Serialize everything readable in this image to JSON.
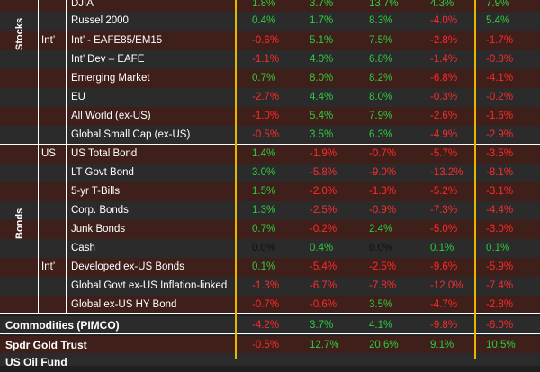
{
  "colors": {
    "positive": "#2ecc40",
    "negative": "#ff2a2a",
    "gold_rule": "#e7b400",
    "stripe_red": "#3f1f1a",
    "stripe_dark": "#2b2b2b"
  },
  "sections": {
    "stocks": "Stocks",
    "bonds": "Bonds"
  },
  "rows": [
    {
      "group": "",
      "name": "DJIA",
      "values": [
        "1.8%",
        "3.7%",
        "13.7%",
        "4.3%",
        "7.9%"
      ],
      "signs": [
        "pos",
        "pos",
        "pos",
        "pos",
        "pos"
      ],
      "stripe": "red"
    },
    {
      "group": "",
      "name": "Russel 2000",
      "values": [
        "0.4%",
        "1.7%",
        "8.3%",
        "-4.0%",
        "5.4%"
      ],
      "signs": [
        "pos",
        "pos",
        "pos",
        "neg",
        "pos"
      ],
      "stripe": "dark"
    },
    {
      "group": "Int’",
      "name": "Int’ - EAFE85/EM15",
      "values": [
        "-0.6%",
        "5.1%",
        "7.5%",
        "-2.8%",
        "-1.7%"
      ],
      "signs": [
        "neg",
        "pos",
        "pos",
        "neg",
        "neg"
      ],
      "stripe": "red"
    },
    {
      "group": "",
      "name": "Int’ Dev – EAFE",
      "values": [
        "-1.1%",
        "4.0%",
        "6.8%",
        "-1.4%",
        "-0.8%"
      ],
      "signs": [
        "neg",
        "pos",
        "pos",
        "neg",
        "neg"
      ],
      "stripe": "dark"
    },
    {
      "group": "",
      "name": "Emerging Market",
      "values": [
        "0.7%",
        "8.0%",
        "8.2%",
        "-6.8%",
        "-4.1%"
      ],
      "signs": [
        "pos",
        "pos",
        "pos",
        "neg",
        "neg"
      ],
      "stripe": "red"
    },
    {
      "group": "",
      "name": "EU",
      "values": [
        "-2.7%",
        "4.4%",
        "8.0%",
        "-0.3%",
        "-0.2%"
      ],
      "signs": [
        "neg",
        "pos",
        "pos",
        "neg",
        "neg"
      ],
      "stripe": "dark"
    },
    {
      "group": "",
      "name": "All World (ex-US)",
      "values": [
        "-1.0%",
        "5.4%",
        "7.9%",
        "-2.6%",
        "-1.6%"
      ],
      "signs": [
        "neg",
        "pos",
        "pos",
        "neg",
        "neg"
      ],
      "stripe": "red"
    },
    {
      "group": "",
      "name": "Global Small Cap (ex-US)",
      "values": [
        "-0.5%",
        "3.5%",
        "6.3%",
        "-4.9%",
        "-2.9%"
      ],
      "signs": [
        "neg",
        "pos",
        "pos",
        "neg",
        "neg"
      ],
      "stripe": "dark"
    },
    {
      "group": "US",
      "name": "US Total Bond",
      "values": [
        "1.4%",
        "-1.9%",
        "-0.7%",
        "-5.7%",
        "-3.5%"
      ],
      "signs": [
        "pos",
        "neg",
        "neg",
        "neg",
        "neg"
      ],
      "stripe": "red"
    },
    {
      "group": "",
      "name": "LT Govt Bond",
      "values": [
        "3.0%",
        "-5.8%",
        "-9.0%",
        "-13.2%",
        "-8.1%"
      ],
      "signs": [
        "pos",
        "neg",
        "neg",
        "neg",
        "neg"
      ],
      "stripe": "dark"
    },
    {
      "group": "",
      "name": "5-yr T-Bills",
      "values": [
        "1.5%",
        "-2.0%",
        "-1.3%",
        "-5.2%",
        "-3.1%"
      ],
      "signs": [
        "pos",
        "neg",
        "neg",
        "neg",
        "neg"
      ],
      "stripe": "red"
    },
    {
      "group": "",
      "name": "Corp. Bonds",
      "values": [
        "1.3%",
        "-2.5%",
        "-0.9%",
        "-7.3%",
        "-4.4%"
      ],
      "signs": [
        "pos",
        "neg",
        "neg",
        "neg",
        "neg"
      ],
      "stripe": "dark"
    },
    {
      "group": "",
      "name": "Junk Bonds",
      "values": [
        "0.7%",
        "-0.2%",
        "2.4%",
        "-5.0%",
        "-3.0%"
      ],
      "signs": [
        "pos",
        "neg",
        "pos",
        "neg",
        "neg"
      ],
      "stripe": "red"
    },
    {
      "group": "",
      "name": "Cash",
      "values": [
        "0.0%",
        "0.4%",
        "0.0%",
        "0.1%",
        "0.1%"
      ],
      "signs": [
        "zero",
        "pos",
        "zero",
        "pos",
        "pos"
      ],
      "stripe": "dark"
    },
    {
      "group": "Int’",
      "name": "Developed ex-US Bonds",
      "values": [
        "0.1%",
        "-5.4%",
        "-2.5%",
        "-9.6%",
        "-5.9%"
      ],
      "signs": [
        "pos",
        "neg",
        "neg",
        "neg",
        "neg"
      ],
      "stripe": "red"
    },
    {
      "group": "",
      "name": "Global Govt ex-US Inflation-linked",
      "values": [
        "-1.3%",
        "-6.7%",
        "-7.8%",
        "-12.0%",
        "-7.4%"
      ],
      "signs": [
        "neg",
        "neg",
        "neg",
        "neg",
        "neg"
      ],
      "stripe": "dark"
    },
    {
      "group": "",
      "name": "Global ex-US HY Bond",
      "values": [
        "-0.7%",
        "-0.6%",
        "3.5%",
        "-4.7%",
        "-2.8%"
      ],
      "signs": [
        "neg",
        "neg",
        "pos",
        "neg",
        "neg"
      ],
      "stripe": "red"
    },
    {
      "group": "big",
      "name": "Commodities (PIMCO)",
      "values": [
        "-4.2%",
        "3.7%",
        "4.1%",
        "-9.8%",
        "-6.0%"
      ],
      "signs": [
        "neg",
        "pos",
        "pos",
        "neg",
        "neg"
      ],
      "stripe": "dark"
    },
    {
      "group": "big",
      "name": "Spdr Gold Trust",
      "values": [
        "-0.5%",
        "12.7%",
        "20.6%",
        "9.1%",
        "10.5%"
      ],
      "signs": [
        "neg",
        "pos",
        "pos",
        "pos",
        "pos"
      ],
      "stripe": "red"
    },
    {
      "group": "big",
      "name": "US Oil Fund",
      "values": [
        "",
        "",
        "",
        "",
        ""
      ],
      "signs": [
        "",
        "",
        "",
        "",
        ""
      ],
      "stripe": "dark"
    }
  ]
}
